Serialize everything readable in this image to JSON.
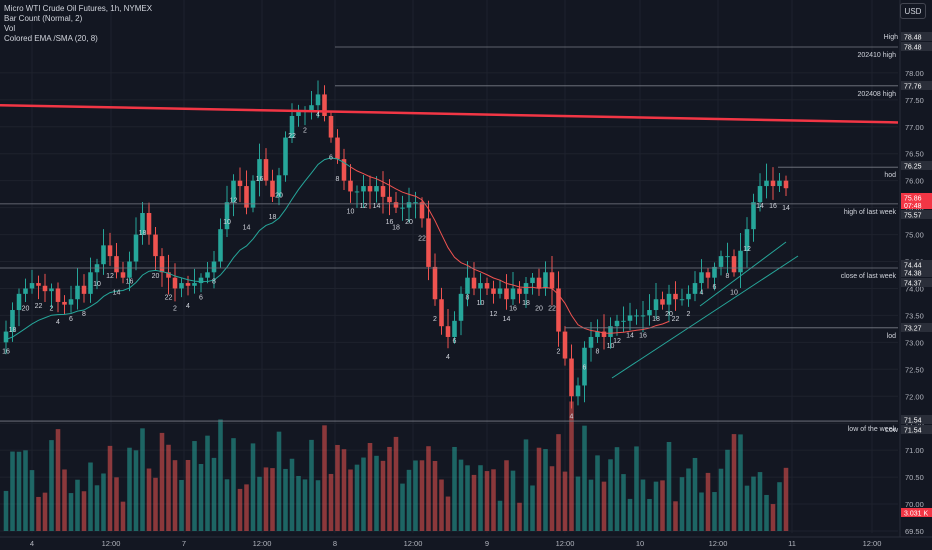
{
  "legend": {
    "title": "Micro WTI Crude Oil Futures, 1h, NYMEX",
    "line2": "Bar Count (Normal, 2)",
    "line3": "Vol",
    "line4": "Colored EMA /SMA (20, 8)"
  },
  "currency_button": "USD",
  "colors": {
    "background": "#131722",
    "up": "#26a69a",
    "down": "#ef5350",
    "ema": "#26a69a",
    "sma": "#ef5350",
    "resistance": "#f23645",
    "levels": "#787b86",
    "axis_text": "#b2b5be"
  },
  "chart_data": {
    "type": "candlestick",
    "symbol": "Micro WTI Crude Oil Futures",
    "timeframe": "1h",
    "exchange": "NYMEX",
    "y_axis_ticks": [
      69.5,
      70.0,
      70.5,
      71.0,
      71.5,
      72.0,
      72.5,
      73.0,
      73.5,
      74.0,
      74.5,
      75.0,
      75.5,
      76.0,
      76.5,
      77.0,
      77.5,
      78.0
    ],
    "y_range": [
      69.35,
      78.75
    ],
    "x_axis_labels": [
      "4",
      "12:00",
      "7",
      "12:00",
      "8",
      "12:00",
      "9",
      "12:00",
      "10",
      "12:00",
      "11",
      "12:00"
    ],
    "price_labels": [
      {
        "label": "High",
        "value": "78.48"
      },
      {
        "label": "",
        "value": "78.48"
      },
      {
        "label": "",
        "value": "77.76"
      },
      {
        "label": "",
        "value": "76.25"
      },
      {
        "label": "",
        "value": "75.86",
        "sub": "07:48"
      },
      {
        "label": "",
        "value": "75.57"
      },
      {
        "label": "",
        "value": "74.44"
      },
      {
        "label": "",
        "value": "74.38"
      },
      {
        "label": "",
        "value": "74.37"
      },
      {
        "label": "",
        "value": "73.27"
      },
      {
        "label": "",
        "value": "71.54"
      },
      {
        "label": "Low",
        "value": "71.54"
      },
      {
        "label": "",
        "value": "3.031 K"
      }
    ],
    "levels": [
      {
        "name": "202410 high",
        "value": 78.48
      },
      {
        "name": "202408 high",
        "value": 77.76
      },
      {
        "name": "hod",
        "value": 76.25
      },
      {
        "name": "high of last week",
        "value": 75.57
      },
      {
        "name": "close of last week",
        "value": 74.38
      },
      {
        "name": "lod",
        "value": 73.27
      },
      {
        "name": "low of the week",
        "value": 71.54
      }
    ],
    "resistance_line": {
      "start": 77.4,
      "end": 77.08
    },
    "bar_count_labels": [
      "16",
      "18",
      "20",
      "22",
      "2",
      "4",
      "6",
      "8",
      "10",
      "12",
      "14",
      "16",
      "18",
      "20",
      "22",
      "2",
      "4",
      "6",
      "8",
      "10",
      "12",
      "14",
      "16",
      "18",
      "20",
      "22",
      "2",
      "4",
      "6",
      "8",
      "10",
      "12",
      "14",
      "16",
      "18",
      "20",
      "22",
      "2",
      "4",
      "6",
      "8",
      "10",
      "12",
      "14",
      "16",
      "18",
      "20",
      "22",
      "2",
      "4",
      "6",
      "8",
      "10",
      "12",
      "14",
      "16",
      "18",
      "20",
      "22",
      "2",
      "4",
      "6",
      "8",
      "10",
      "12",
      "14",
      "16",
      "14"
    ],
    "closes": [
      73.2,
      73.6,
      73.9,
      74.0,
      74.1,
      74.05,
      73.95,
      74.0,
      73.75,
      73.7,
      73.8,
      74.05,
      73.9,
      74.3,
      74.45,
      74.8,
      74.6,
      74.3,
      74.2,
      74.5,
      75.0,
      75.4,
      75.0,
      74.6,
      74.3,
      74.2,
      74.0,
      74.1,
      74.05,
      74.1,
      74.2,
      74.3,
      74.5,
      75.1,
      75.6,
      76.0,
      75.9,
      75.5,
      76.0,
      76.4,
      76.0,
      75.7,
      76.1,
      76.8,
      77.2,
      77.3,
      77.3,
      77.4,
      77.6,
      77.2,
      76.8,
      76.4,
      76.0,
      75.8,
      75.8,
      75.9,
      75.8,
      75.9,
      75.7,
      75.6,
      75.5,
      75.5,
      75.6,
      75.6,
      75.3,
      74.4,
      73.8,
      73.3,
      73.1,
      73.4,
      73.9,
      74.2,
      74.0,
      74.1,
      74.0,
      73.9,
      74.0,
      73.8,
      74.0,
      73.9,
      74.1,
      74.2,
      74.0,
      74.3,
      74.0,
      73.2,
      72.7,
      72.0,
      72.2,
      72.9,
      73.1,
      73.2,
      73.1,
      73.3,
      73.4,
      73.4,
      73.5,
      73.5,
      73.5,
      73.6,
      73.8,
      73.7,
      73.9,
      73.8,
      73.8,
      73.9,
      74.1,
      74.3,
      74.2,
      74.4,
      74.6,
      74.6,
      74.3,
      74.7,
      75.1,
      75.6,
      75.9,
      76.0,
      75.9,
      76.0,
      75.86
    ],
    "volume_note": "volume histogram below price, values in contracts, last bar 3.031 K"
  }
}
